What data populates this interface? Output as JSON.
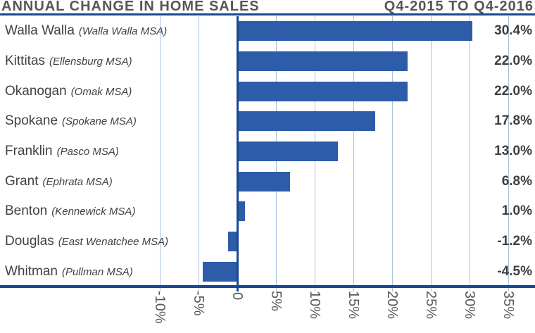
{
  "header": {
    "title": "ANNUAL CHANGE IN HOME SALES",
    "period": "Q4-2015 TO Q4-2016"
  },
  "chart_data": {
    "type": "bar",
    "orientation": "horizontal",
    "title": "ANNUAL CHANGE IN HOME SALES",
    "subtitle": "Q4-2015 TO Q4-2016",
    "unit": "percent",
    "rows": [
      {
        "county": "Walla Walla",
        "msa": "(Walla Walla MSA)",
        "value": 30.4,
        "value_label": "30.4%"
      },
      {
        "county": "Kittitas",
        "msa": "(Ellensburg MSA)",
        "value": 22.0,
        "value_label": "22.0%"
      },
      {
        "county": "Okanogan",
        "msa": "(Omak MSA)",
        "value": 22.0,
        "value_label": "22.0%"
      },
      {
        "county": "Spokane",
        "msa": "(Spokane MSA)",
        "value": 17.8,
        "value_label": "17.8%"
      },
      {
        "county": "Franklin",
        "msa": "(Pasco MSA)",
        "value": 13.0,
        "value_label": "13.0%"
      },
      {
        "county": "Grant",
        "msa": "(Ephrata MSA)",
        "value": 6.8,
        "value_label": "6.8%"
      },
      {
        "county": "Benton",
        "msa": "(Kennewick MSA)",
        "value": 1.0,
        "value_label": "1.0%"
      },
      {
        "county": "Douglas",
        "msa": "(East Wenatchee MSA)",
        "value": -1.2,
        "value_label": "-1.2%"
      },
      {
        "county": "Whitman",
        "msa": "(Pullman MSA)",
        "value": -4.5,
        "value_label": "-4.5%"
      }
    ],
    "x_ticks": [
      {
        "label": "-10%",
        "value": -10
      },
      {
        "label": "-5%",
        "value": -5
      },
      {
        "label": "0",
        "value": 0
      },
      {
        "label": "5%",
        "value": 5
      },
      {
        "label": "10%",
        "value": 10
      },
      {
        "label": "15%",
        "value": 15
      },
      {
        "label": "20%",
        "value": 20
      },
      {
        "label": "25%",
        "value": 25
      },
      {
        "label": "30%",
        "value": 30
      },
      {
        "label": "35%",
        "value": 35
      }
    ],
    "xlim": [
      -10.2,
      38
    ],
    "grid": true,
    "legend": false,
    "colors": {
      "bar": "#2d5da9",
      "axis": "#1b4794",
      "grid": "#a9c1de",
      "title": "#55565a",
      "label": "#414141",
      "value": "#3d3e40",
      "tick": "#57585b"
    }
  }
}
